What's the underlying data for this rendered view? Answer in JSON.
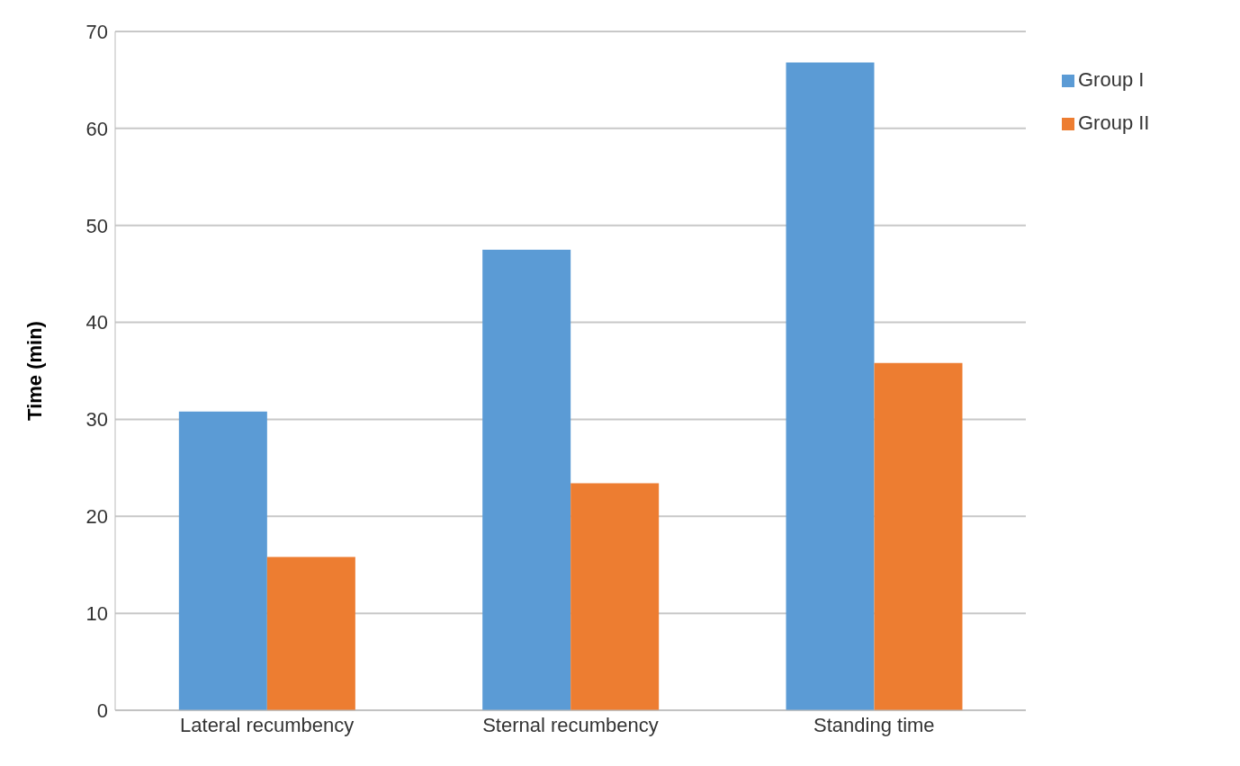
{
  "chart_data": {
    "type": "bar",
    "categories": [
      "Lateral recumbency",
      "Sternal recumbency",
      "Standing time"
    ],
    "series": [
      {
        "name": "Group I",
        "color": "#5b9bd5",
        "values": [
          30.8,
          47.5,
          66.8
        ]
      },
      {
        "name": "Group II",
        "color": "#ed7d31",
        "values": [
          15.8,
          23.4,
          35.8
        ]
      }
    ],
    "ylabel": "Time (min)",
    "ylim": [
      0,
      70
    ],
    "yticks": [
      0,
      10,
      20,
      30,
      40,
      50,
      60,
      70
    ],
    "grid": "y",
    "legend": "top right"
  }
}
